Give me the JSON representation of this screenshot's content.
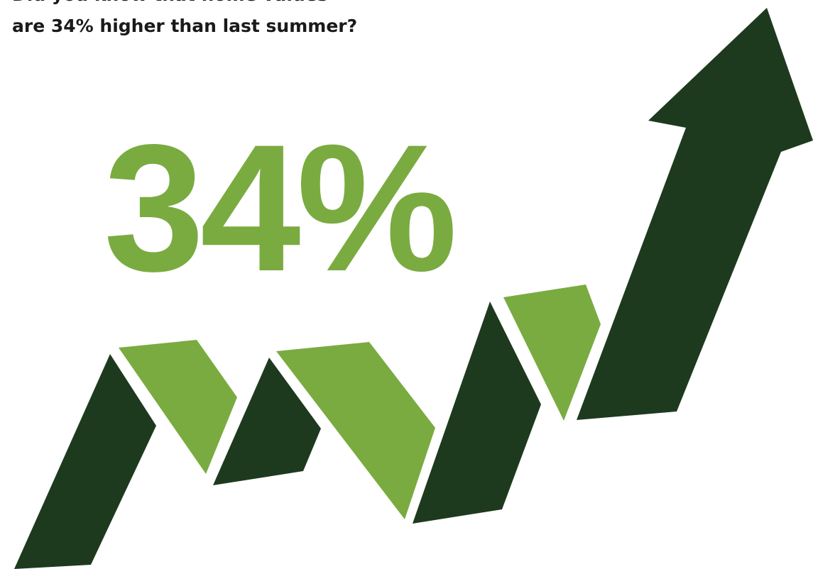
{
  "headline": {
    "line1": "Did you know that home values",
    "line2": "are 34% higher than last summer?"
  },
  "stat": {
    "value": "34%"
  },
  "graphic": {
    "icon": "trend-up-arrow-icon",
    "colors": {
      "dark": "#1e3a1e",
      "light": "#7aab40",
      "text": "#1a1a1a",
      "background": "#ffffff"
    }
  }
}
